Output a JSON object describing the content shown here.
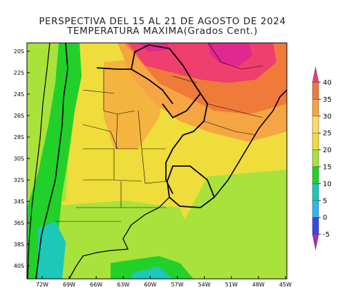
{
  "title_line1": "PERSPECTIVA DEL 15 AL 21 DE AGOSTO DE 2024",
  "title_line2": "TEMPERATURA MAXIMA(Grados Cent.)",
  "lat_ticks": [
    "20S",
    "22S",
    "24S",
    "26S",
    "28S",
    "30S",
    "32S",
    "34S",
    "36S",
    "38S",
    "40S"
  ],
  "lon_ticks": [
    "72W",
    "69W",
    "66W",
    "63W",
    "60W",
    "57W",
    "54W",
    "51W",
    "48W",
    "45W"
  ],
  "colorbar": {
    "labels": [
      "40",
      "35",
      "30",
      "25",
      "20",
      "15",
      "10",
      "5",
      "0",
      "-5"
    ],
    "colors": [
      "#ee3f6f",
      "#f07a3a",
      "#f5a542",
      "#ffd860",
      "#eedd3a",
      "#a9e23a",
      "#22d02a",
      "#1cc8b8",
      "#2fb6f0",
      "#3b46e3",
      "#b026c8"
    ]
  }
}
